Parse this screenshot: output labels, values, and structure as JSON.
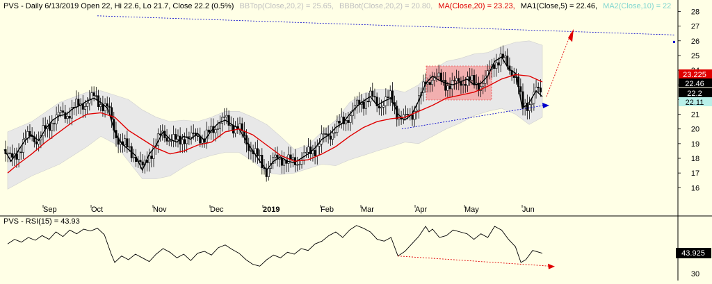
{
  "header": {
    "title": "PVS - Daily 6/13/2019 Open 22, Hi 22.6, Lo 21.7, Close 22.2 (0.5%)",
    "bbtop": "BBTop(Close,20,2) = 25.65,",
    "bbbot": "BBBot(Close,20,2) = 20.80,",
    "ma20": "MA(Close,20) = 23.23,",
    "ma1": "MA1(Close,5) = 22.46,",
    "ma2": "MA2(Close,10) = 22"
  },
  "rsi_header": "PVS - RSI(15) = 43.93",
  "colors": {
    "background": "#ffffe6",
    "band_fill": "#e8e8e8",
    "ma20": "#e00000",
    "ma5": "#000000",
    "ma10": "#7fd6cf",
    "title_gray": "#c0c0c0",
    "trend_blue": "#0000cc",
    "trend_red": "#e00000",
    "box_fill": "#f4a6a6"
  },
  "badges": [
    {
      "text": "23.225",
      "bg": "#e00000",
      "fg": "#ffffff"
    },
    {
      "text": "22.46",
      "bg": "#000000",
      "fg": "#ffffff"
    },
    {
      "text": "22.2",
      "bg": "#000000",
      "fg": "#ffffff"
    },
    {
      "text": "22.11",
      "bg": "#b8f0e8",
      "fg": "#000000"
    }
  ],
  "rsi_badge": "43.925",
  "chart_data": [
    {
      "type": "candlestick",
      "title": "PVS - Daily 6/13/2019",
      "x_tick_labels": [
        "Sep",
        "Oct",
        "Nov",
        "Dec",
        "2019",
        "Feb",
        "Mar",
        "Apr",
        "May",
        "Jun"
      ],
      "y_tick_labels": [
        "16",
        "17",
        "18",
        "19",
        "20",
        "21",
        "22",
        "23",
        "24",
        "25",
        "26",
        "27",
        "28"
      ],
      "ylim": [
        15.4,
        28.4
      ],
      "last_bar": {
        "date": "6/13/2019",
        "open": 22,
        "high": 22.6,
        "low": 21.7,
        "close": 22.2,
        "change_pct": 0.5
      },
      "indicators": {
        "bbtop_20_2": 25.65,
        "bbbot_20_2": 20.8,
        "ma_close_20": 23.23,
        "ma1_close_5": 22.46
      },
      "close_path": [
        [
          0,
          18.6
        ],
        [
          10,
          17.8
        ],
        [
          20,
          18.5
        ],
        [
          30,
          19.2
        ],
        [
          40,
          19.6
        ],
        [
          50,
          19.2
        ],
        [
          60,
          20.0
        ],
        [
          70,
          20.6
        ],
        [
          80,
          20.9
        ],
        [
          90,
          21.0
        ],
        [
          100,
          21.4
        ],
        [
          110,
          21.6
        ],
        [
          120,
          21.9
        ],
        [
          130,
          22.1
        ],
        [
          140,
          21.8
        ],
        [
          150,
          21.4
        ],
        [
          160,
          19.8
        ],
        [
          170,
          19.0
        ],
        [
          180,
          18.6
        ],
        [
          190,
          18.2
        ],
        [
          200,
          17.2
        ],
        [
          210,
          18.3
        ],
        [
          220,
          18.9
        ],
        [
          230,
          19.8
        ],
        [
          240,
          19.3
        ],
        [
          250,
          19.1
        ],
        [
          260,
          19.5
        ],
        [
          270,
          19.3
        ],
        [
          280,
          19.7
        ],
        [
          290,
          19.2
        ],
        [
          300,
          19.9
        ],
        [
          310,
          20.4
        ],
        [
          320,
          20.6
        ],
        [
          330,
          20.3
        ],
        [
          340,
          20.0
        ],
        [
          350,
          19.2
        ],
        [
          360,
          18.5
        ],
        [
          370,
          17.8
        ],
        [
          380,
          17.2
        ],
        [
          390,
          17.8
        ],
        [
          400,
          18.1
        ],
        [
          410,
          17.8
        ],
        [
          420,
          17.7
        ],
        [
          430,
          18.0
        ],
        [
          440,
          18.3
        ],
        [
          450,
          18.7
        ],
        [
          460,
          19.3
        ],
        [
          470,
          19.6
        ],
        [
          480,
          20.1
        ],
        [
          490,
          20.4
        ],
        [
          500,
          21.0
        ],
        [
          510,
          21.5
        ],
        [
          520,
          21.9
        ],
        [
          530,
          22.2
        ],
        [
          540,
          21.6
        ],
        [
          550,
          21.9
        ],
        [
          560,
          22.1
        ],
        [
          570,
          21.0
        ],
        [
          580,
          20.6
        ],
        [
          590,
          21.0
        ],
        [
          600,
          21.9
        ],
        [
          610,
          23.1
        ],
        [
          620,
          23.6
        ],
        [
          630,
          23.3
        ],
        [
          640,
          23.1
        ],
        [
          650,
          23.0
        ],
        [
          660,
          23.2
        ],
        [
          670,
          23.4
        ],
        [
          680,
          23.0
        ],
        [
          690,
          23.1
        ],
        [
          700,
          23.6
        ],
        [
          710,
          24.6
        ],
        [
          720,
          24.9
        ],
        [
          730,
          24.1
        ],
        [
          740,
          23.8
        ],
        [
          745,
          22.7
        ],
        [
          750,
          21.4
        ],
        [
          760,
          21.8
        ],
        [
          770,
          22.6
        ],
        [
          779,
          22.2
        ]
      ],
      "ma20_path": [
        [
          5,
          17.0
        ],
        [
          20,
          17.6
        ],
        [
          40,
          18.3
        ],
        [
          60,
          19.1
        ],
        [
          80,
          19.8
        ],
        [
          100,
          20.5
        ],
        [
          120,
          21.0
        ],
        [
          140,
          21.1
        ],
        [
          160,
          20.8
        ],
        [
          180,
          19.9
        ],
        [
          200,
          19.3
        ],
        [
          220,
          18.7
        ],
        [
          240,
          18.3
        ],
        [
          260,
          18.5
        ],
        [
          280,
          18.9
        ],
        [
          300,
          19.1
        ],
        [
          320,
          19.8
        ],
        [
          340,
          20.0
        ],
        [
          360,
          19.6
        ],
        [
          380,
          18.9
        ],
        [
          400,
          18.2
        ],
        [
          420,
          17.8
        ],
        [
          440,
          17.9
        ],
        [
          460,
          18.3
        ],
        [
          480,
          18.8
        ],
        [
          500,
          19.5
        ],
        [
          520,
          20.1
        ],
        [
          540,
          20.5
        ],
        [
          560,
          20.7
        ],
        [
          580,
          20.8
        ],
        [
          600,
          21.2
        ],
        [
          620,
          21.6
        ],
        [
          640,
          22.1
        ],
        [
          660,
          22.3
        ],
        [
          680,
          22.5
        ],
        [
          700,
          22.9
        ],
        [
          720,
          23.4
        ],
        [
          740,
          23.7
        ],
        [
          760,
          23.6
        ],
        [
          779,
          23.2
        ]
      ],
      "bb_upper_path": [
        [
          5,
          19.8
        ],
        [
          40,
          20.5
        ],
        [
          80,
          21.8
        ],
        [
          120,
          22.5
        ],
        [
          140,
          22.6
        ],
        [
          160,
          22.3
        ],
        [
          180,
          22.0
        ],
        [
          200,
          21.3
        ],
        [
          220,
          20.8
        ],
        [
          240,
          20.5
        ],
        [
          260,
          20.6
        ],
        [
          280,
          20.5
        ],
        [
          300,
          20.8
        ],
        [
          320,
          21.2
        ],
        [
          340,
          21.2
        ],
        [
          360,
          20.8
        ],
        [
          380,
          20.3
        ],
        [
          400,
          19.5
        ],
        [
          420,
          18.6
        ],
        [
          440,
          18.9
        ],
        [
          460,
          19.8
        ],
        [
          480,
          20.6
        ],
        [
          500,
          21.8
        ],
        [
          520,
          22.4
        ],
        [
          540,
          22.7
        ],
        [
          560,
          22.7
        ],
        [
          580,
          22.5
        ],
        [
          600,
          23.0
        ],
        [
          620,
          24.0
        ],
        [
          640,
          24.6
        ],
        [
          660,
          24.8
        ],
        [
          680,
          25.1
        ],
        [
          700,
          25.2
        ],
        [
          720,
          25.6
        ],
        [
          740,
          25.9
        ],
        [
          760,
          26.0
        ],
        [
          779,
          25.7
        ]
      ],
      "bb_lower_path": [
        [
          5,
          15.9
        ],
        [
          40,
          16.8
        ],
        [
          80,
          17.6
        ],
        [
          120,
          18.8
        ],
        [
          140,
          19.5
        ],
        [
          160,
          19.0
        ],
        [
          180,
          17.8
        ],
        [
          200,
          16.6
        ],
        [
          220,
          16.6
        ],
        [
          240,
          16.8
        ],
        [
          260,
          17.4
        ],
        [
          280,
          17.9
        ],
        [
          300,
          18.2
        ],
        [
          320,
          18.4
        ],
        [
          340,
          18.4
        ],
        [
          360,
          17.8
        ],
        [
          380,
          17.0
        ],
        [
          400,
          16.9
        ],
        [
          420,
          17.0
        ],
        [
          440,
          17.3
        ],
        [
          460,
          17.6
        ],
        [
          480,
          17.5
        ],
        [
          500,
          17.9
        ],
        [
          520,
          18.2
        ],
        [
          540,
          18.5
        ],
        [
          560,
          18.8
        ],
        [
          580,
          19.1
        ],
        [
          600,
          19.0
        ],
        [
          620,
          19.5
        ],
        [
          640,
          20.0
        ],
        [
          660,
          20.4
        ],
        [
          680,
          20.9
        ],
        [
          700,
          21.2
        ],
        [
          720,
          21.4
        ],
        [
          740,
          21.0
        ],
        [
          760,
          20.3
        ],
        [
          779,
          20.8
        ]
      ]
    },
    {
      "type": "line",
      "title": "PVS - RSI(15) = 43.93",
      "y_tick_labels": [
        "30"
      ],
      "last_value": 43.925,
      "rsi_path": [
        [
          5,
          55
        ],
        [
          15,
          60
        ],
        [
          25,
          57
        ],
        [
          35,
          62
        ],
        [
          45,
          59
        ],
        [
          55,
          64
        ],
        [
          65,
          60
        ],
        [
          75,
          68
        ],
        [
          85,
          63
        ],
        [
          95,
          70
        ],
        [
          105,
          66
        ],
        [
          115,
          71
        ],
        [
          125,
          69
        ],
        [
          135,
          72
        ],
        [
          145,
          65
        ],
        [
          155,
          44
        ],
        [
          160,
          35
        ],
        [
          170,
          42
        ],
        [
          180,
          38
        ],
        [
          190,
          44
        ],
        [
          200,
          40
        ],
        [
          210,
          36
        ],
        [
          220,
          44
        ],
        [
          230,
          50
        ],
        [
          240,
          46
        ],
        [
          250,
          40
        ],
        [
          260,
          44
        ],
        [
          270,
          37
        ],
        [
          280,
          45
        ],
        [
          290,
          47
        ],
        [
          300,
          43
        ],
        [
          310,
          51
        ],
        [
          320,
          54
        ],
        [
          330,
          49
        ],
        [
          340,
          45
        ],
        [
          350,
          38
        ],
        [
          360,
          33
        ],
        [
          370,
          31
        ],
        [
          380,
          38
        ],
        [
          390,
          43
        ],
        [
          400,
          40
        ],
        [
          410,
          46
        ],
        [
          420,
          44
        ],
        [
          430,
          50
        ],
        [
          440,
          48
        ],
        [
          450,
          55
        ],
        [
          460,
          58
        ],
        [
          470,
          64
        ],
        [
          480,
          68
        ],
        [
          490,
          62
        ],
        [
          500,
          70
        ],
        [
          510,
          75
        ],
        [
          520,
          72
        ],
        [
          530,
          68
        ],
        [
          540,
          60
        ],
        [
          550,
          58
        ],
        [
          560,
          62
        ],
        [
          570,
          42
        ],
        [
          580,
          47
        ],
        [
          590,
          55
        ],
        [
          600,
          63
        ],
        [
          610,
          74
        ],
        [
          615,
          68
        ],
        [
          620,
          71
        ],
        [
          630,
          62
        ],
        [
          640,
          64
        ],
        [
          650,
          70
        ],
        [
          660,
          68
        ],
        [
          670,
          66
        ],
        [
          680,
          60
        ],
        [
          690,
          66
        ],
        [
          700,
          62
        ],
        [
          710,
          74
        ],
        [
          720,
          70
        ],
        [
          730,
          60
        ],
        [
          740,
          52
        ],
        [
          748,
          35
        ],
        [
          755,
          38
        ],
        [
          765,
          48
        ],
        [
          779,
          45
        ]
      ]
    }
  ]
}
